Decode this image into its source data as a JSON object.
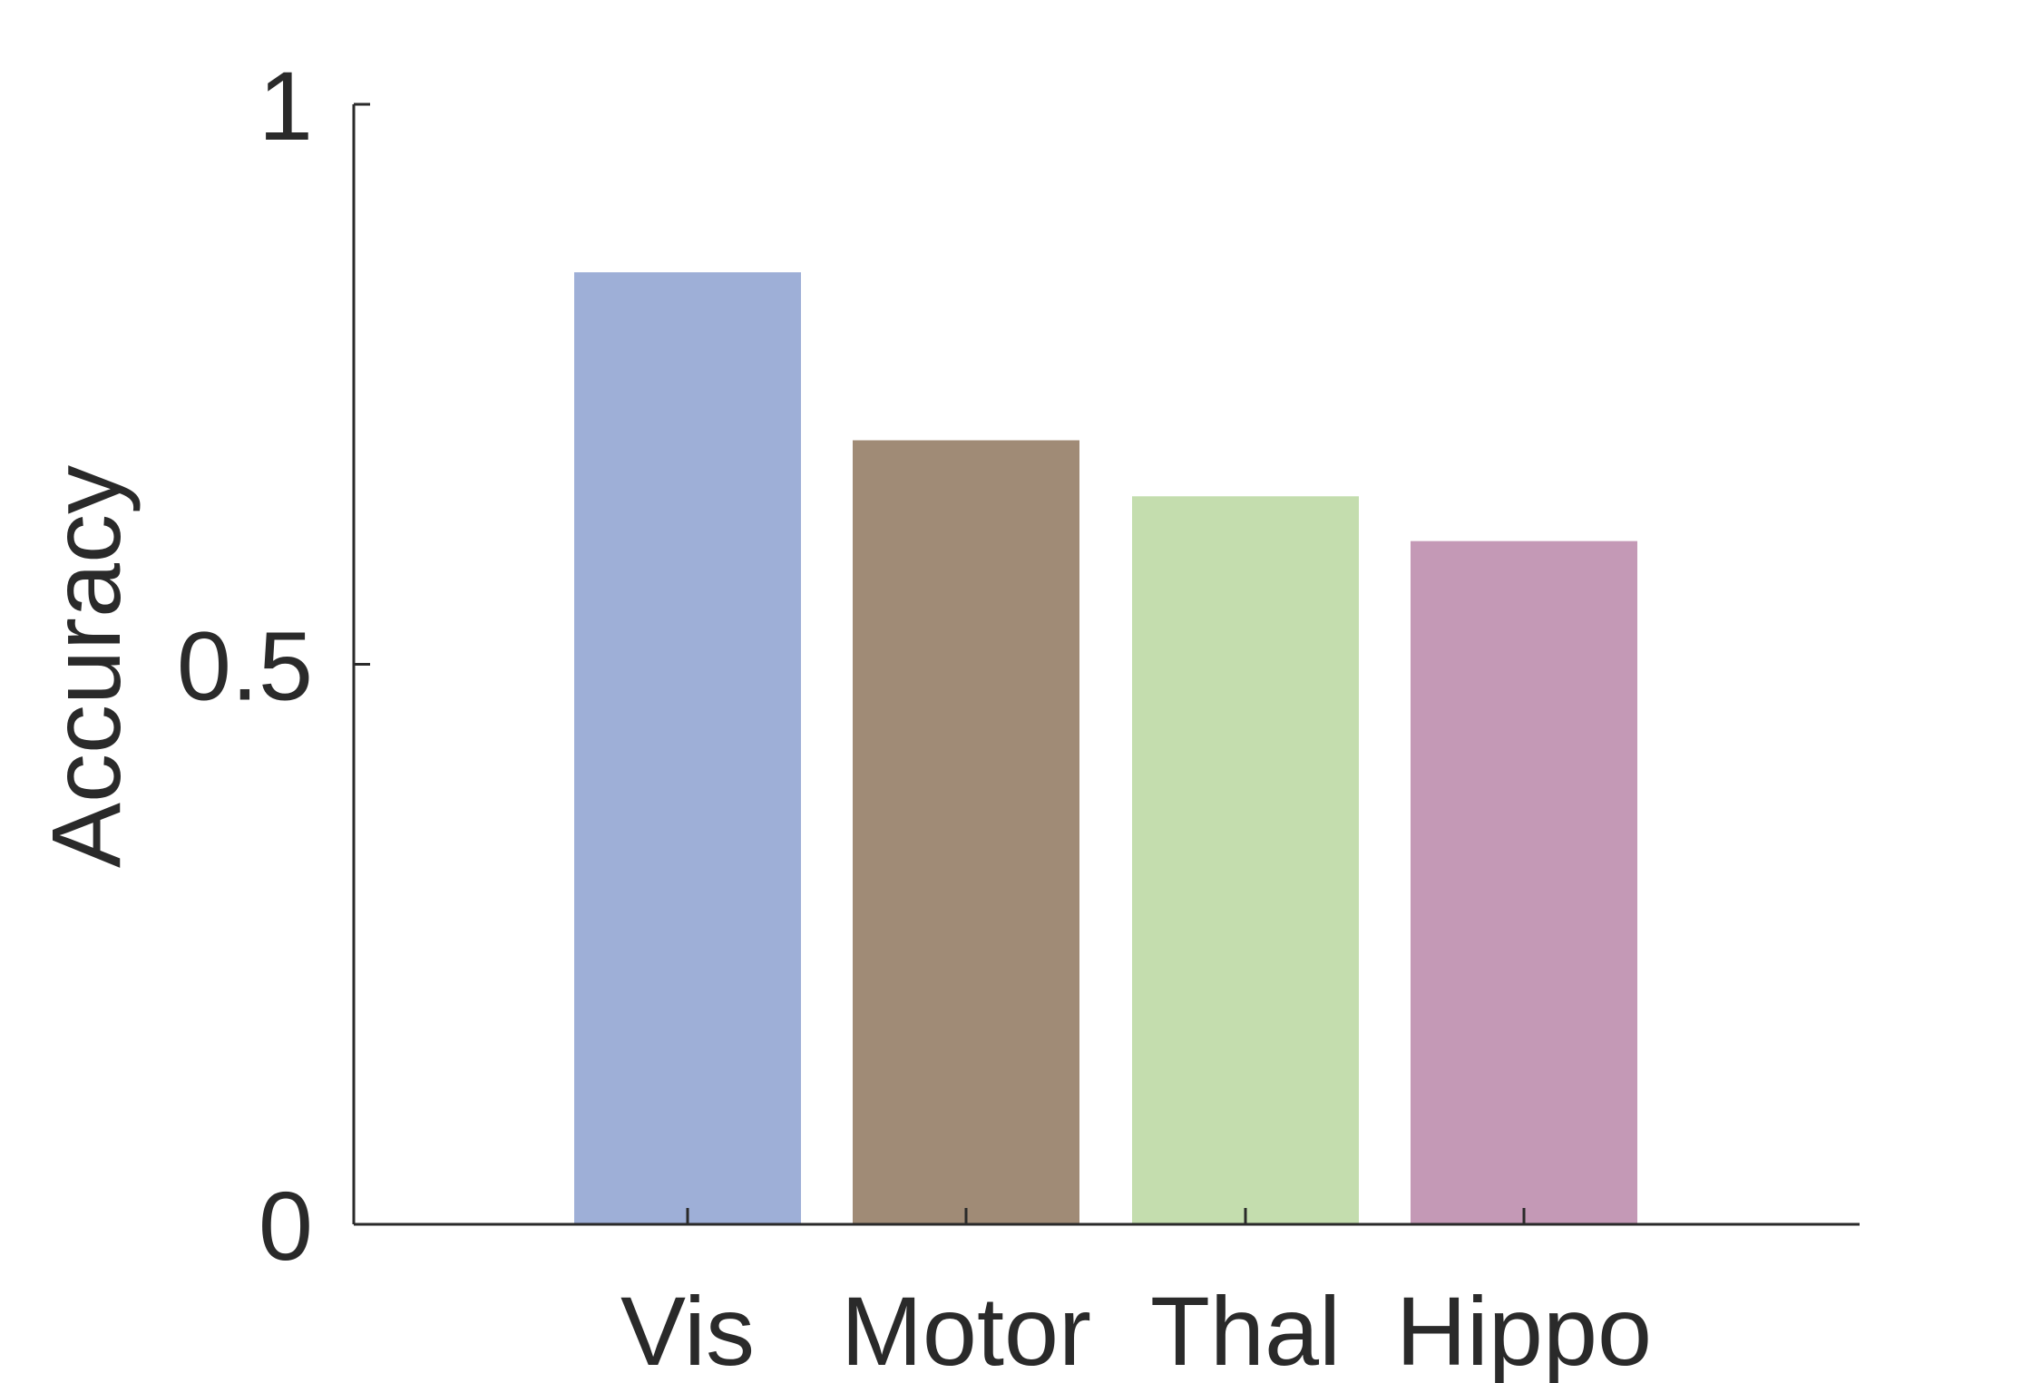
{
  "chart_data": {
    "type": "bar",
    "categories": [
      "Vis",
      "Motor",
      "Thal",
      "Hippo"
    ],
    "values": [
      0.85,
      0.7,
      0.65,
      0.61
    ],
    "colors": [
      "#9eafd7",
      "#a08b76",
      "#c4ddae",
      "#c499b6"
    ],
    "title": "",
    "xlabel": "",
    "ylabel": "Accuracy",
    "ylim": [
      0,
      1
    ],
    "yticks": [
      0,
      0.5,
      1
    ],
    "ytick_labels": [
      "0",
      "0.5",
      "1"
    ],
    "grid": false,
    "legend": "none"
  }
}
